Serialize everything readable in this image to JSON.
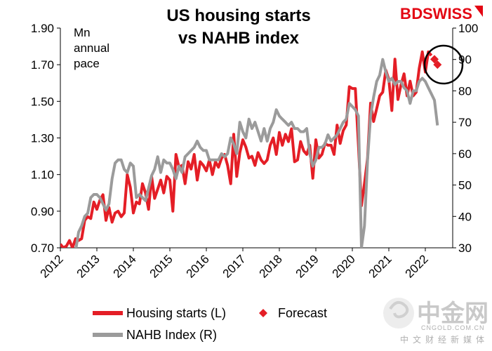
{
  "title_line1": "US housing starts",
  "title_line2": "vs NAHB index",
  "unit_lines": [
    "Mn",
    "annual",
    "pace"
  ],
  "brand": {
    "bd": "BD",
    "swiss": "SWISS"
  },
  "watermark": {
    "name": "中金网",
    "url": "CNGOLD.COM.CN",
    "tagline": "中文财经新媒体"
  },
  "colors": {
    "housing": "#e41e26",
    "nahb": "#9b9b9b",
    "forecast": "#e41e26",
    "brand": "#e30613"
  },
  "chart_data": {
    "type": "line",
    "x_range": [
      2012.0,
      2022.75
    ],
    "x_ticks": [
      "2012",
      "2013",
      "2014",
      "2015",
      "2016",
      "2017",
      "2018",
      "2019",
      "2020",
      "2021",
      "2022"
    ],
    "y_left": {
      "range": [
        0.7,
        1.9
      ],
      "ticks": [
        "0.70",
        "0.90",
        "1.10",
        "1.30",
        "1.50",
        "1.70",
        "1.90"
      ]
    },
    "y_right": {
      "range": [
        30,
        100
      ],
      "ticks": [
        "30",
        "40",
        "50",
        "60",
        "70",
        "80",
        "90",
        "100"
      ]
    },
    "grid": false,
    "legend_position": "bottom",
    "series": [
      {
        "name": "Housing starts (L)",
        "axis": "left",
        "x": [
          2012.0,
          2012.083,
          2012.167,
          2012.25,
          2012.333,
          2012.417,
          2012.5,
          2012.583,
          2012.667,
          2012.75,
          2012.833,
          2012.917,
          2013.0,
          2013.083,
          2013.167,
          2013.25,
          2013.333,
          2013.417,
          2013.5,
          2013.583,
          2013.667,
          2013.75,
          2013.833,
          2013.917,
          2014.0,
          2014.083,
          2014.167,
          2014.25,
          2014.333,
          2014.417,
          2014.5,
          2014.583,
          2014.667,
          2014.75,
          2014.833,
          2014.917,
          2015.0,
          2015.083,
          2015.167,
          2015.25,
          2015.333,
          2015.417,
          2015.5,
          2015.583,
          2015.667,
          2015.75,
          2015.833,
          2015.917,
          2016.0,
          2016.083,
          2016.167,
          2016.25,
          2016.333,
          2016.417,
          2016.5,
          2016.583,
          2016.667,
          2016.75,
          2016.833,
          2016.917,
          2017.0,
          2017.083,
          2017.167,
          2017.25,
          2017.333,
          2017.417,
          2017.5,
          2017.583,
          2017.667,
          2017.75,
          2017.833,
          2017.917,
          2018.0,
          2018.083,
          2018.167,
          2018.25,
          2018.333,
          2018.417,
          2018.5,
          2018.583,
          2018.667,
          2018.75,
          2018.833,
          2018.917,
          2019.0,
          2019.083,
          2019.167,
          2019.25,
          2019.333,
          2019.417,
          2019.5,
          2019.583,
          2019.667,
          2019.75,
          2019.833,
          2019.917,
          2020.0,
          2020.083,
          2020.167,
          2020.25,
          2020.333,
          2020.417,
          2020.5,
          2020.583,
          2020.667,
          2020.75,
          2020.833,
          2020.917,
          2021.0,
          2021.083,
          2021.167,
          2021.25,
          2021.333,
          2021.417,
          2021.5,
          2021.583,
          2021.667,
          2021.75,
          2021.833,
          2021.917,
          2022.0,
          2022.083,
          2022.167
        ],
        "values": [
          0.72,
          0.7,
          0.71,
          0.74,
          0.7,
          0.75,
          0.74,
          0.75,
          0.85,
          0.87,
          0.86,
          0.95,
          0.91,
          0.96,
          0.99,
          0.85,
          0.92,
          0.84,
          0.89,
          0.9,
          0.87,
          0.89,
          1.1,
          1.03,
          0.89,
          0.95,
          0.94,
          1.05,
          1.0,
          0.91,
          1.09,
          0.97,
          1.02,
          1.07,
          1.0,
          1.09,
          1.07,
          0.9,
          1.21,
          1.14,
          1.15,
          1.05,
          1.17,
          1.13,
          1.21,
          1.07,
          1.17,
          1.15,
          1.12,
          1.18,
          1.1,
          1.17,
          1.14,
          1.19,
          1.21,
          1.15,
          1.05,
          1.32,
          1.09,
          1.22,
          1.29,
          1.25,
          1.19,
          1.2,
          1.15,
          1.22,
          1.18,
          1.16,
          1.18,
          1.26,
          1.3,
          1.21,
          1.33,
          1.26,
          1.32,
          1.28,
          1.35,
          1.17,
          1.18,
          1.28,
          1.23,
          1.21,
          1.26,
          1.08,
          1.29,
          1.19,
          1.21,
          1.27,
          1.26,
          1.26,
          1.21,
          1.37,
          1.27,
          1.34,
          1.37,
          1.58,
          1.57,
          1.57,
          1.26,
          0.93,
          1.05,
          1.19,
          1.49,
          1.39,
          1.46,
          1.53,
          1.55,
          1.67,
          1.62,
          1.45,
          1.73,
          1.51,
          1.59,
          1.65,
          1.53,
          1.61,
          1.53,
          1.55,
          1.68,
          1.77,
          1.66,
          1.77,
          1.75
        ]
      },
      {
        "name": "NAHB Index (R)",
        "axis": "right",
        "x": [
          2012.0,
          2012.083,
          2012.167,
          2012.25,
          2012.333,
          2012.417,
          2012.5,
          2012.583,
          2012.667,
          2012.75,
          2012.833,
          2012.917,
          2013.0,
          2013.083,
          2013.167,
          2013.25,
          2013.333,
          2013.417,
          2013.5,
          2013.583,
          2013.667,
          2013.75,
          2013.833,
          2013.917,
          2014.0,
          2014.083,
          2014.167,
          2014.25,
          2014.333,
          2014.417,
          2014.5,
          2014.583,
          2014.667,
          2014.75,
          2014.833,
          2014.917,
          2015.0,
          2015.083,
          2015.167,
          2015.25,
          2015.333,
          2015.417,
          2015.5,
          2015.583,
          2015.667,
          2015.75,
          2015.833,
          2015.917,
          2016.0,
          2016.083,
          2016.167,
          2016.25,
          2016.333,
          2016.417,
          2016.5,
          2016.583,
          2016.667,
          2016.75,
          2016.833,
          2016.917,
          2017.0,
          2017.083,
          2017.167,
          2017.25,
          2017.333,
          2017.417,
          2017.5,
          2017.583,
          2017.667,
          2017.75,
          2017.833,
          2017.917,
          2018.0,
          2018.083,
          2018.167,
          2018.25,
          2018.333,
          2018.417,
          2018.5,
          2018.583,
          2018.667,
          2018.75,
          2018.833,
          2018.917,
          2019.0,
          2019.083,
          2019.167,
          2019.25,
          2019.333,
          2019.417,
          2019.5,
          2019.583,
          2019.667,
          2019.75,
          2019.833,
          2019.917,
          2020.0,
          2020.083,
          2020.167,
          2020.25,
          2020.333,
          2020.417,
          2020.5,
          2020.583,
          2020.667,
          2020.75,
          2020.833,
          2020.917,
          2021.0,
          2021.083,
          2021.167,
          2021.25,
          2021.333,
          2021.417,
          2021.5,
          2021.583,
          2021.667,
          2021.75,
          2021.833,
          2021.917,
          2022.0,
          2022.083,
          2022.167,
          2022.25,
          2022.333
        ],
        "values": [
          25,
          28,
          28,
          25,
          29,
          29,
          35,
          37,
          40,
          41,
          46,
          47,
          47,
          46,
          44,
          42,
          44,
          52,
          57,
          58,
          58,
          55,
          54,
          57,
          56,
          46,
          47,
          46,
          45,
          49,
          53,
          55,
          59,
          54,
          58,
          57,
          57,
          55,
          52,
          56,
          54,
          59,
          60,
          61,
          62,
          64,
          62,
          61,
          61,
          58,
          58,
          58,
          58,
          60,
          59,
          60,
          65,
          63,
          60,
          70,
          67,
          65,
          71,
          68,
          70,
          67,
          64,
          68,
          64,
          68,
          70,
          74,
          72,
          71,
          70,
          69,
          70,
          68,
          68,
          67,
          67,
          68,
          60,
          56,
          58,
          62,
          62,
          63,
          66,
          64,
          65,
          66,
          68,
          70,
          71,
          76,
          75,
          74,
          72,
          30,
          37,
          58,
          72,
          78,
          83,
          85,
          90,
          86,
          83,
          84,
          82,
          83,
          83,
          81,
          80,
          76,
          80,
          80,
          83,
          84,
          83,
          81,
          79,
          77,
          69
        ]
      }
    ],
    "forecast": {
      "name": "Forecast",
      "axis": "left",
      "x": [
        2022.25,
        2022.333
      ],
      "values": [
        1.73,
        1.7
      ]
    }
  }
}
